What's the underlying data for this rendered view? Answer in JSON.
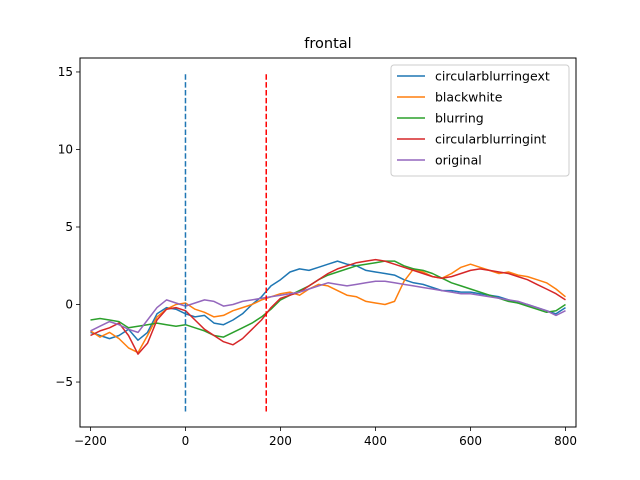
{
  "chart_data": {
    "type": "line",
    "title": "frontal",
    "xlabel": "",
    "ylabel": "",
    "xlim": [
      -222,
      822
    ],
    "ylim": [
      -7.9,
      15.9
    ],
    "xticks": [
      -200,
      0,
      200,
      400,
      600,
      800
    ],
    "yticks": [
      -5,
      0,
      5,
      10,
      15
    ],
    "grid": false,
    "legend_position": "top-right",
    "series": [
      {
        "name": "circularblurringext",
        "color": "#1f77b4",
        "x": [
          -200,
          -180,
          -160,
          -140,
          -120,
          -100,
          -80,
          -60,
          -40,
          -20,
          0,
          20,
          40,
          60,
          80,
          100,
          120,
          140,
          160,
          180,
          200,
          220,
          240,
          260,
          280,
          300,
          320,
          340,
          360,
          380,
          400,
          420,
          440,
          460,
          480,
          500,
          520,
          540,
          560,
          580,
          600,
          620,
          640,
          660,
          680,
          700,
          720,
          740,
          760,
          780,
          800
        ],
        "values": [
          -1.8,
          -2.0,
          -2.2,
          -2.0,
          -1.6,
          -2.3,
          -1.8,
          -0.6,
          -0.2,
          -0.3,
          -0.6,
          -0.8,
          -0.7,
          -1.2,
          -1.3,
          -1.0,
          -0.6,
          0.0,
          0.5,
          1.2,
          1.6,
          2.1,
          2.3,
          2.2,
          2.4,
          2.6,
          2.8,
          2.6,
          2.5,
          2.2,
          2.1,
          2.0,
          1.9,
          1.6,
          1.4,
          1.3,
          1.1,
          0.9,
          0.9,
          0.8,
          0.8,
          0.7,
          0.6,
          0.5,
          0.3,
          0.1,
          0.0,
          -0.2,
          -0.4,
          -0.6,
          -0.2
        ]
      },
      {
        "name": "blackwhite",
        "color": "#ff7f0e",
        "x": [
          -200,
          -180,
          -160,
          -140,
          -120,
          -100,
          -80,
          -60,
          -40,
          -20,
          0,
          20,
          40,
          60,
          80,
          100,
          120,
          140,
          160,
          180,
          200,
          220,
          240,
          260,
          280,
          300,
          320,
          340,
          360,
          380,
          400,
          420,
          440,
          460,
          480,
          500,
          520,
          540,
          560,
          580,
          600,
          620,
          640,
          660,
          680,
          700,
          720,
          740,
          760,
          780,
          800
        ],
        "values": [
          -1.7,
          -2.1,
          -1.8,
          -2.2,
          -2.8,
          -3.1,
          -2.0,
          -0.8,
          -0.3,
          0.0,
          0.1,
          -0.3,
          -0.5,
          -0.8,
          -0.7,
          -0.4,
          -0.2,
          0.0,
          0.3,
          0.5,
          0.7,
          0.8,
          0.6,
          1.0,
          1.3,
          1.2,
          0.9,
          0.6,
          0.5,
          0.2,
          0.1,
          0.0,
          0.2,
          1.5,
          2.3,
          2.1,
          1.8,
          1.7,
          2.0,
          2.4,
          2.6,
          2.4,
          2.2,
          2.0,
          2.1,
          1.9,
          1.8,
          1.6,
          1.4,
          1.0,
          0.5
        ]
      },
      {
        "name": "blurring",
        "color": "#2ca02c",
        "x": [
          -200,
          -180,
          -160,
          -140,
          -120,
          -100,
          -80,
          -60,
          -40,
          -20,
          0,
          20,
          40,
          60,
          80,
          100,
          120,
          140,
          160,
          180,
          200,
          220,
          240,
          260,
          280,
          300,
          320,
          340,
          360,
          380,
          400,
          420,
          440,
          460,
          480,
          500,
          520,
          540,
          560,
          580,
          600,
          620,
          640,
          660,
          680,
          700,
          720,
          740,
          760,
          780,
          800
        ],
        "values": [
          -1.0,
          -0.9,
          -1.0,
          -1.1,
          -1.5,
          -1.4,
          -1.3,
          -1.2,
          -1.3,
          -1.4,
          -1.3,
          -1.5,
          -1.7,
          -2.0,
          -2.1,
          -1.8,
          -1.5,
          -1.2,
          -0.8,
          -0.3,
          0.3,
          0.6,
          0.9,
          1.2,
          1.6,
          1.9,
          2.1,
          2.3,
          2.5,
          2.6,
          2.7,
          2.8,
          2.8,
          2.5,
          2.3,
          2.2,
          2.0,
          1.7,
          1.4,
          1.2,
          1.0,
          0.8,
          0.6,
          0.4,
          0.2,
          0.1,
          -0.1,
          -0.3,
          -0.5,
          -0.4,
          0.0
        ]
      },
      {
        "name": "circularblurringint",
        "color": "#d62728",
        "x": [
          -200,
          -180,
          -160,
          -140,
          -120,
          -100,
          -80,
          -60,
          -40,
          -20,
          0,
          20,
          40,
          60,
          80,
          100,
          120,
          140,
          160,
          180,
          200,
          220,
          240,
          260,
          280,
          300,
          320,
          340,
          360,
          380,
          400,
          420,
          440,
          460,
          480,
          500,
          520,
          540,
          560,
          580,
          600,
          620,
          640,
          660,
          680,
          700,
          720,
          740,
          760,
          780,
          800
        ],
        "values": [
          -2.0,
          -1.7,
          -1.5,
          -1.2,
          -2.0,
          -3.2,
          -2.5,
          -1.0,
          -0.3,
          -0.2,
          -0.4,
          -1.0,
          -1.6,
          -2.0,
          -2.4,
          -2.6,
          -2.2,
          -1.6,
          -1.0,
          -0.2,
          0.4,
          0.6,
          0.8,
          1.2,
          1.6,
          2.0,
          2.3,
          2.5,
          2.7,
          2.8,
          2.9,
          2.8,
          2.6,
          2.4,
          2.2,
          2.0,
          1.8,
          1.7,
          1.8,
          2.0,
          2.2,
          2.3,
          2.2,
          2.1,
          2.0,
          1.8,
          1.6,
          1.3,
          1.0,
          0.7,
          0.3
        ]
      },
      {
        "name": "original",
        "color": "#9467bd",
        "x": [
          -200,
          -180,
          -160,
          -140,
          -120,
          -100,
          -80,
          -60,
          -40,
          -20,
          0,
          20,
          40,
          60,
          80,
          100,
          120,
          140,
          160,
          180,
          200,
          220,
          240,
          260,
          280,
          300,
          320,
          340,
          360,
          380,
          400,
          420,
          440,
          460,
          480,
          500,
          520,
          540,
          560,
          580,
          600,
          620,
          640,
          660,
          680,
          700,
          720,
          740,
          760,
          780,
          800
        ],
        "values": [
          -1.7,
          -1.4,
          -1.1,
          -1.3,
          -1.6,
          -1.8,
          -1.0,
          -0.2,
          0.3,
          0.1,
          -0.1,
          0.1,
          0.3,
          0.2,
          -0.1,
          0.0,
          0.2,
          0.3,
          0.4,
          0.5,
          0.6,
          0.7,
          0.8,
          1.0,
          1.2,
          1.4,
          1.3,
          1.2,
          1.3,
          1.4,
          1.5,
          1.5,
          1.4,
          1.3,
          1.2,
          1.1,
          1.0,
          0.9,
          0.8,
          0.7,
          0.7,
          0.6,
          0.5,
          0.4,
          0.3,
          0.2,
          0.0,
          -0.2,
          -0.4,
          -0.7,
          -0.4
        ]
      }
    ],
    "vlines": [
      {
        "x": 0,
        "y_from": -6.9,
        "y_to": 15.0,
        "color": "#1f77b4",
        "style": "dashed"
      },
      {
        "x": 170,
        "y_from": -6.9,
        "y_to": 15.0,
        "color": "#ff0000",
        "style": "dashed"
      }
    ]
  }
}
